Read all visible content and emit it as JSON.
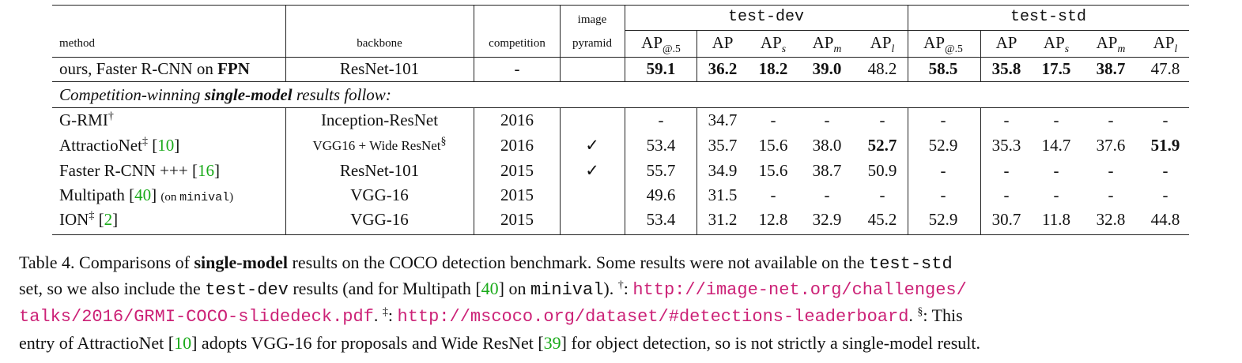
{
  "table": {
    "group_image": "image",
    "headers": {
      "method": "method",
      "backbone": "backbone",
      "competition": "competition",
      "pyramid": "pyramid",
      "test_dev": "test-dev",
      "test_std": "test-std",
      "ap_main": "AP",
      "ap05_sub": "@.5",
      "s_sub": "s",
      "m_sub": "m",
      "l_sub": "l"
    },
    "ours": {
      "method_prefix": "ours, Faster R-CNN on ",
      "method_bold": "FPN",
      "backbone": "ResNet-101",
      "competition": "-",
      "pyramid": "",
      "dev": [
        "59.1",
        "36.2",
        "18.2",
        "39.0",
        "48.2"
      ],
      "std": [
        "58.5",
        "35.8",
        "17.5",
        "38.7",
        "47.8"
      ]
    },
    "section": {
      "prefix": "Competition-winning ",
      "bold": "single-model",
      "suffix": " results follow:"
    },
    "rows": [
      {
        "method": "G-RMI",
        "mark": "†",
        "ref": "",
        "note": "",
        "backbone": "Inception-ResNet",
        "backbone_mark": "",
        "competition": "2016",
        "pyramid": "",
        "dev": [
          "-",
          "34.7",
          "-",
          "-",
          "-"
        ],
        "std": [
          "-",
          "-",
          "-",
          "-",
          "-"
        ]
      },
      {
        "method": "AttractioNet",
        "mark": "‡",
        "ref": "10",
        "note": "",
        "backbone": "VGG16 + Wide ResNet",
        "backbone_mark": "§",
        "competition": "2016",
        "pyramid": "✓",
        "dev": [
          "53.4",
          "35.7",
          "15.6",
          "38.0",
          "52.7"
        ],
        "std": [
          "52.9",
          "35.3",
          "14.7",
          "37.6",
          "51.9"
        ]
      },
      {
        "method": "Faster R-CNN +++",
        "mark": "",
        "ref": "16",
        "note": "",
        "backbone": "ResNet-101",
        "backbone_mark": "",
        "competition": "2015",
        "pyramid": "✓",
        "dev": [
          "55.7",
          "34.9",
          "15.6",
          "38.7",
          "50.9"
        ],
        "std": [
          "-",
          "-",
          "-",
          "-",
          "-"
        ]
      },
      {
        "method": "Multipath",
        "mark": "",
        "ref": "40",
        "note_pre": "(on ",
        "note_mono": "minival",
        "note_post": ")",
        "backbone": "VGG-16",
        "backbone_mark": "",
        "competition": "2015",
        "pyramid": "",
        "dev": [
          "49.6",
          "31.5",
          "-",
          "-",
          "-"
        ],
        "std": [
          "-",
          "-",
          "-",
          "-",
          "-"
        ]
      },
      {
        "method": "ION",
        "mark": "‡",
        "ref": "2",
        "note": "",
        "backbone": "VGG-16",
        "backbone_mark": "",
        "competition": "2015",
        "pyramid": "",
        "dev": [
          "53.4",
          "31.2",
          "12.8",
          "32.9",
          "45.2"
        ],
        "std": [
          "52.9",
          "30.7",
          "11.8",
          "32.8",
          "44.8"
        ]
      }
    ]
  },
  "caption": {
    "l1a": "Table 4. Comparisons of ",
    "l1b": "single-model",
    "l1c": " results on the COCO detection benchmark. Some results were not available on the ",
    "l1d": "test-std",
    "l2a": "set, so we also include the ",
    "l2b": "test-dev",
    "l2c": " results (and for Multipath [",
    "l2d": "40",
    "l2e": "] on ",
    "l2f": "minival",
    "l2g": "). ",
    "dagger": "†",
    "colon": ": ",
    "url1a": "http://image-net.org/challenges/",
    "url1b": "talks/2016/GRMI-COCO-slidedeck.pdf",
    "l3a": ". ",
    "ddagger": "‡",
    "url2": "http://mscoco.org/dataset/#detections-leaderboard",
    "l3c": ". ",
    "section": "§",
    "l3d": ": This",
    "l4a": "entry of AttractioNet [",
    "l4b": "10",
    "l4c": "] adopts VGG-16 for proposals and Wide ResNet [",
    "l4d": "39",
    "l4e": "] for object detection, so is not strictly a single-model result."
  }
}
